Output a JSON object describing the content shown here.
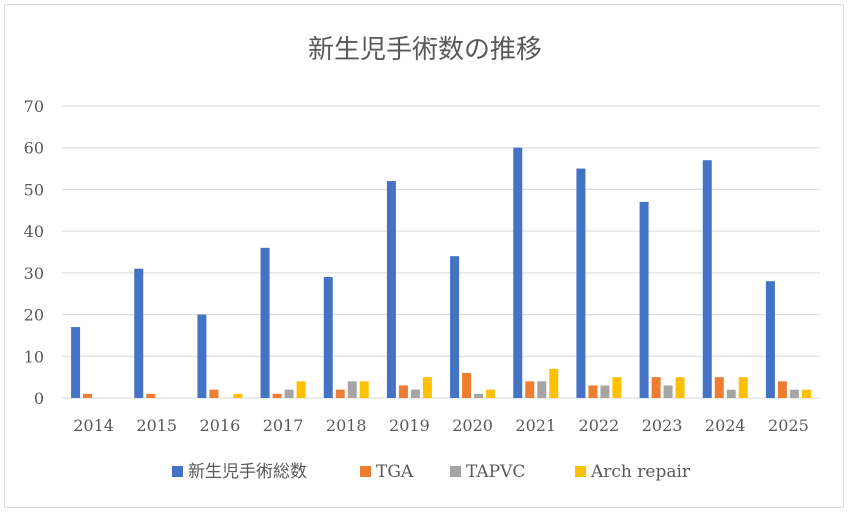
{
  "chart_data": {
    "type": "bar",
    "title": "新生児手術数の推移",
    "xlabel": "",
    "ylabel": "",
    "ylim": [
      0,
      70
    ],
    "yticks": [
      0,
      10,
      20,
      30,
      40,
      50,
      60,
      70
    ],
    "grid": true,
    "legend_position": "bottom",
    "categories": [
      "2014",
      "2015",
      "2016",
      "2017",
      "2018",
      "2019",
      "2020",
      "2021",
      "2022",
      "2023",
      "2024",
      "2025"
    ],
    "series": [
      {
        "name": "新生児手術総数",
        "color": "#4472C4",
        "values": [
          17,
          31,
          20,
          36,
          29,
          52,
          34,
          60,
          55,
          47,
          57,
          28
        ]
      },
      {
        "name": "TGA",
        "color": "#ED7D31",
        "values": [
          1,
          1,
          2,
          1,
          2,
          3,
          6,
          4,
          3,
          5,
          5,
          4
        ]
      },
      {
        "name": "TAPVC",
        "color": "#A5A5A5",
        "values": [
          0,
          0,
          0,
          2,
          4,
          2,
          1,
          4,
          3,
          3,
          2,
          2
        ]
      },
      {
        "name": "Arch repair",
        "color": "#FFC000",
        "values": [
          0,
          0,
          1,
          4,
          4,
          5,
          2,
          7,
          5,
          5,
          5,
          2
        ]
      }
    ]
  }
}
